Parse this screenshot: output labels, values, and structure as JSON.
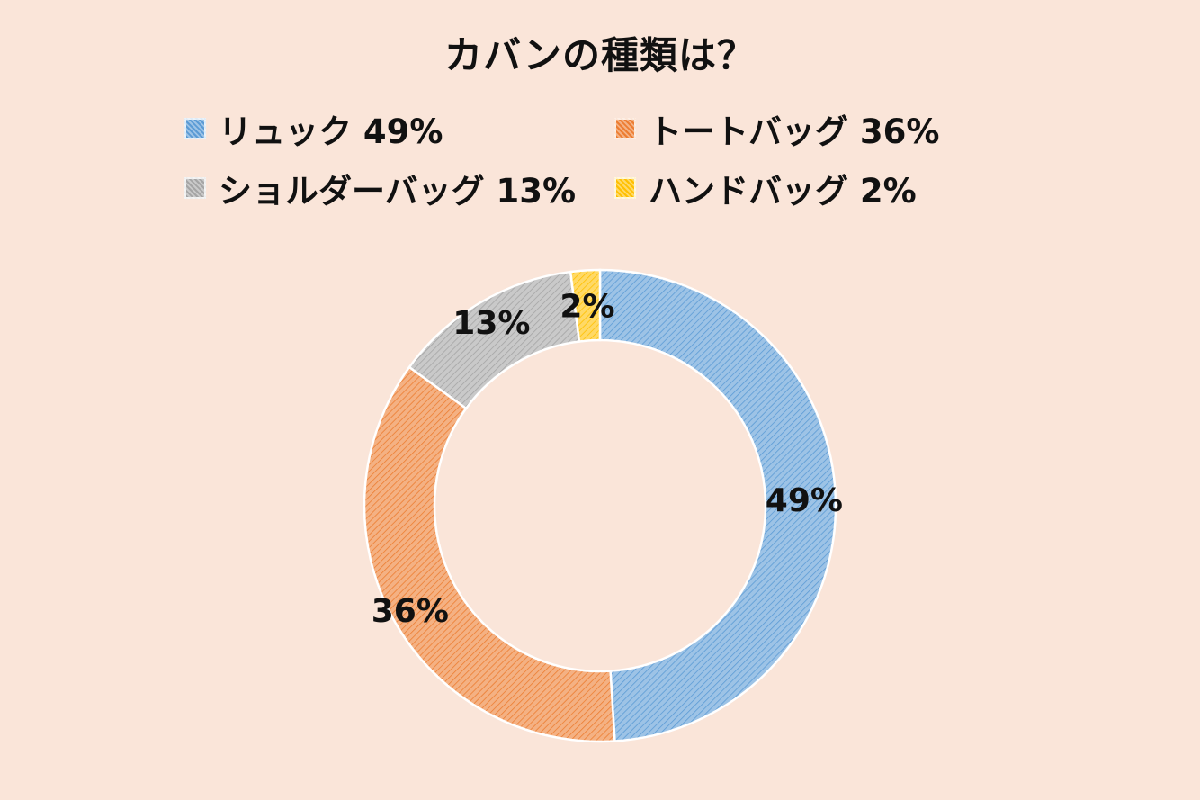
{
  "chart_data": {
    "type": "pie",
    "title": "カバンの種類は？",
    "categories": [
      "リュック",
      "トートバッグ",
      "ショルダーバッグ",
      "ハンドバッグ"
    ],
    "values": [
      49,
      36,
      13,
      2
    ],
    "value_labels": [
      "49%",
      "36%",
      "13%",
      "2%"
    ],
    "legend_labels": [
      "リュック 49%",
      "トートバッグ 36%",
      "ショルダーバッグ 13%",
      "ハンドバッグ 2%"
    ],
    "colors": [
      "#9dc3e6",
      "#f4b183",
      "#c9c9c9",
      "#ffd966"
    ],
    "pattern_colors": [
      "#5b9bd5",
      "#ed7d31",
      "#a5a5a5",
      "#ffc000"
    ],
    "legend_placement": "top",
    "donut": true,
    "start": "top, clockwise"
  },
  "background": "#fae5d9"
}
